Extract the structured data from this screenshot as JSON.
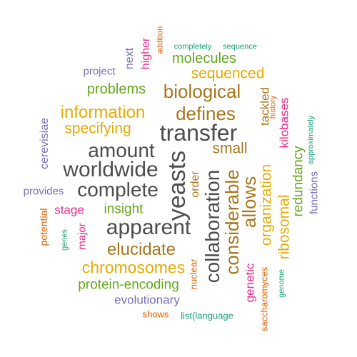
{
  "colors": {
    "dark": "#4d4d4d",
    "brown": "#a6761d",
    "orange": "#e6ab02",
    "green": "#66a61e",
    "purple": "#7570b3",
    "magenta": "#e7298a",
    "red_orange": "#d95f02",
    "teal": "#1b9e77"
  },
  "words": [
    "transfer",
    "yeasts",
    "worldwide",
    "amount",
    "complete",
    "apparent",
    "collaboration",
    "considerable",
    "biological",
    "defines",
    "allows",
    "information",
    "elucidate",
    "chromosomes",
    "organization",
    "small",
    "specifying",
    "sequenced",
    "ribosomal",
    "molecules",
    "problems",
    "protein-encoding",
    "redundancy",
    "insight",
    "evolutionary",
    "stage",
    "genetic",
    "tackled",
    "kilobases",
    "order",
    "higher",
    "next",
    "cerevisiae",
    "project",
    "provides",
    "functions",
    "major",
    "potential",
    "nuclear",
    "saccharomyces",
    "shows",
    "list(language",
    "addition",
    "completely",
    "sequence",
    "history",
    "approximately",
    "genes",
    "genome"
  ]
}
